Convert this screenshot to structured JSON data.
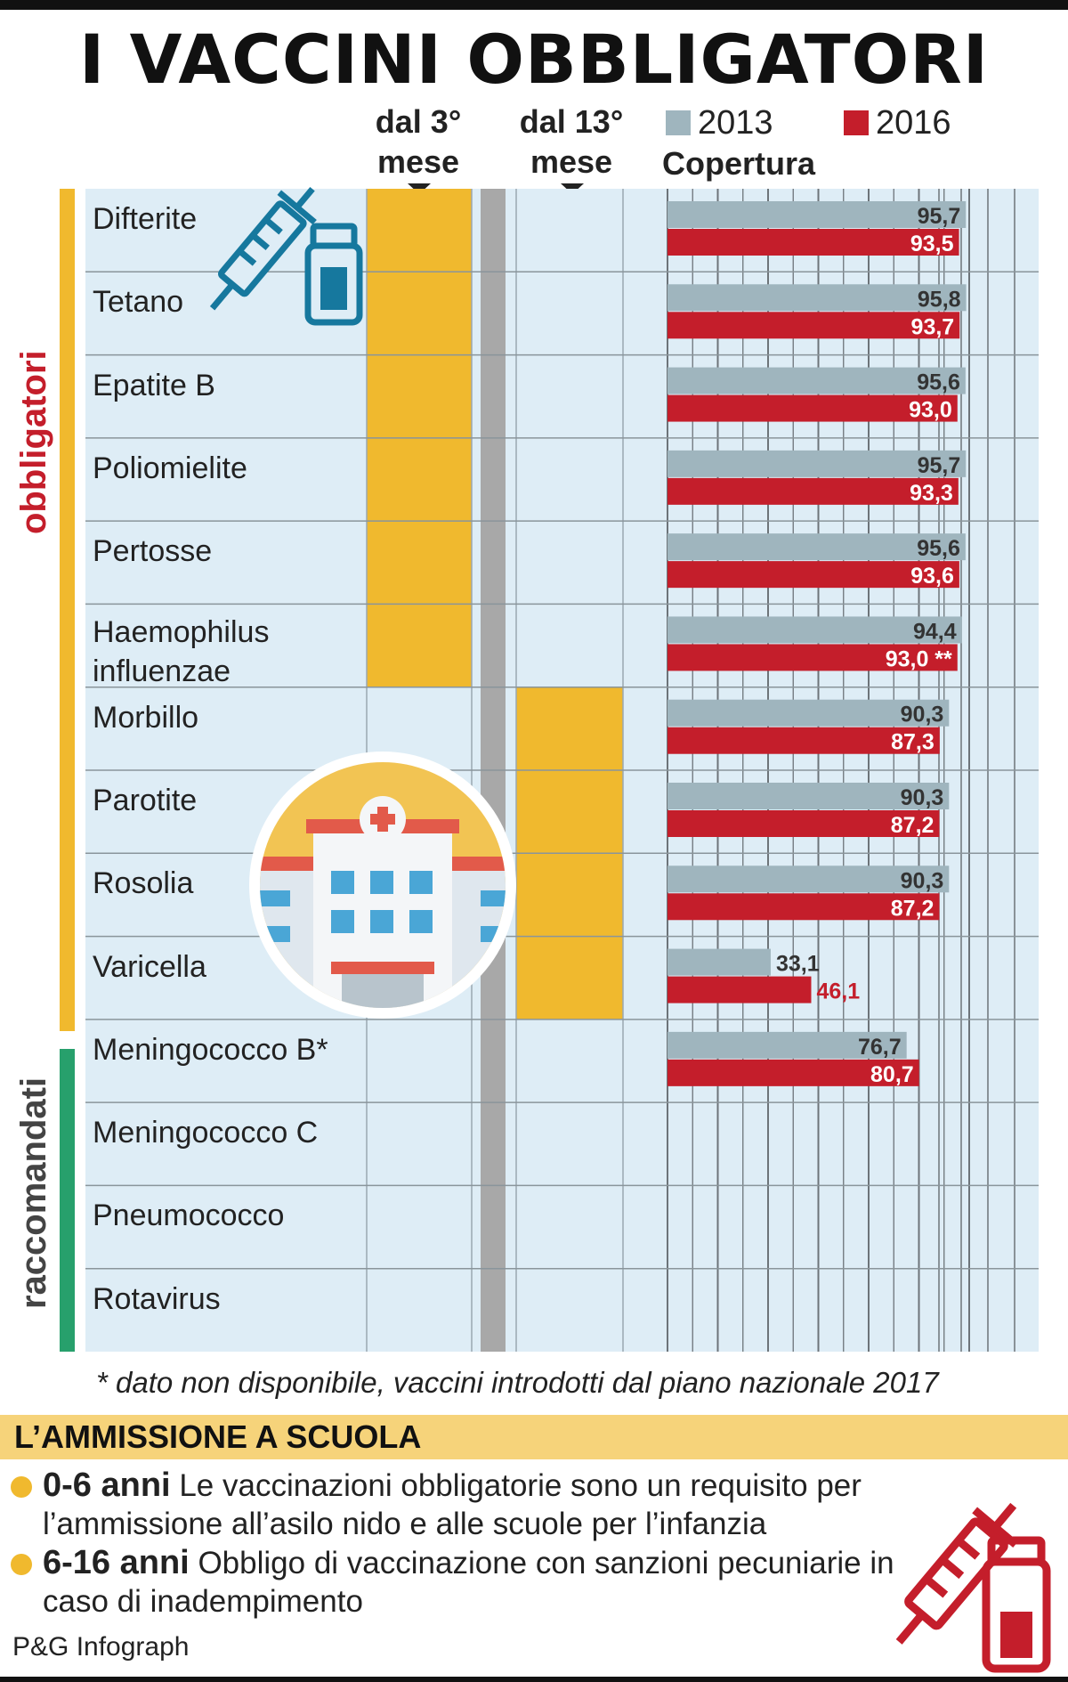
{
  "title": "I VACCINI OBBLIGATORI",
  "headers": {
    "col1_line1": "dal 3°",
    "col1_line2": "mese",
    "col2_line1": "dal 13°",
    "col2_line2": "mese",
    "coverage": "Copertura"
  },
  "groups": {
    "mandatory": "obbligatori",
    "recommended": "raccomandati"
  },
  "colors": {
    "y2013": "#9fb5be",
    "y2016": "#c41e2b",
    "schedule": "#f0b92e",
    "mandatory_bar": "#f0b92e",
    "recommended_bar": "#27a06c",
    "panel_bg": "#deedf6",
    "icon_blue": "#16789e"
  },
  "chart_data": {
    "type": "bar",
    "orientation": "horizontal",
    "title": "",
    "categories": [
      [
        "Difterite"
      ],
      [
        "Tetano"
      ],
      [
        "Epatite B"
      ],
      [
        "Poliomielite"
      ],
      [
        "Pertosse"
      ],
      [
        "Haemophilus",
        "influenzae"
      ],
      [
        "Morbillo"
      ],
      [
        "Parotite"
      ],
      [
        "Rosolia"
      ],
      [
        "Varicella"
      ],
      [
        "Meningococco B*"
      ],
      [
        "Meningococco C"
      ],
      [
        "Pneumococco"
      ],
      [
        "Rotavirus"
      ]
    ],
    "series": [
      {
        "name": "2013",
        "values": [
          95.7,
          95.8,
          95.6,
          95.7,
          95.6,
          94.4,
          90.3,
          90.3,
          90.3,
          33.1,
          76.7,
          null,
          null,
          null
        ],
        "labels": [
          "95,7",
          "95,8",
          "95,6",
          "95,7",
          "95,6",
          "94,4",
          "90,3",
          "90,3",
          "90,3",
          "33,1",
          "76,7",
          "",
          "",
          ""
        ]
      },
      {
        "name": "2016",
        "values": [
          93.5,
          93.7,
          93.0,
          93.3,
          93.6,
          93.0,
          87.3,
          87.2,
          87.2,
          46.1,
          80.7,
          null,
          null,
          null
        ],
        "labels": [
          "93,5",
          "93,7",
          "93,0",
          "93,3",
          "93,6",
          "93,0 **",
          "87,3",
          "87,2",
          "87,2",
          "46,1",
          "80,7",
          "",
          "",
          ""
        ]
      }
    ],
    "schedule": {
      "from_3rd_month": [
        true,
        true,
        true,
        true,
        true,
        true,
        false,
        false,
        false,
        false,
        false,
        false,
        false,
        false
      ],
      "from_13th_month": [
        false,
        false,
        false,
        false,
        false,
        false,
        true,
        true,
        true,
        true,
        false,
        false,
        false,
        false
      ]
    },
    "xlim": [
      0,
      100
    ],
    "grid": true,
    "legend": "top-right"
  },
  "footnote": "* dato non disponibile, vaccini introdotti dal piano nazionale 2017",
  "school": {
    "heading": "L’AMMISSIONE A SCUOLA",
    "items": [
      {
        "range": "0-6 anni",
        "text": " Le vaccinazioni obbligatorie sono un requisito per l’ammissione all’asilo nido e alle scuole per l’infanzia"
      },
      {
        "range": "6-16 anni",
        "text": " Obbligo di vaccinazione con sanzioni pecuniarie in caso di inadempimento"
      }
    ]
  },
  "credit": "P&G Infograph",
  "icons": [
    "syringe-icon",
    "vial-icon",
    "hospital-icon",
    "syringe-red-icon",
    "vial-red-icon"
  ]
}
